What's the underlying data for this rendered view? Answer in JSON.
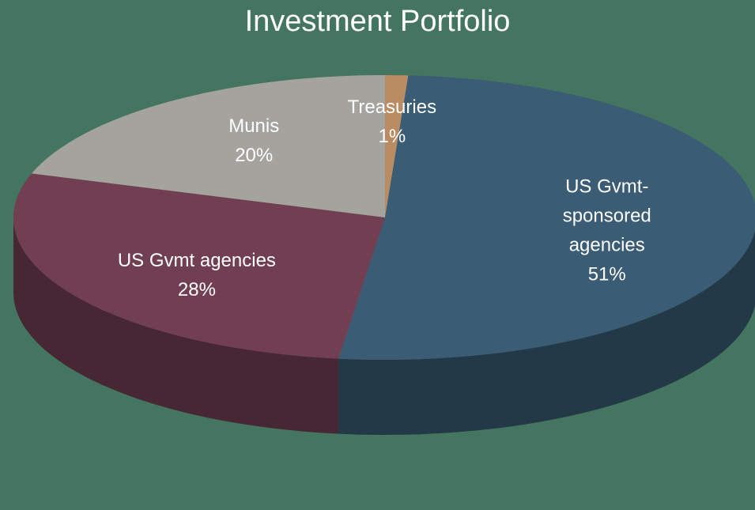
{
  "chart_data": {
    "type": "pie",
    "title": "Investment Portfolio",
    "categories": [
      "Treasuries",
      "US Gvmt-sponsored agencies",
      "US Gvmt agencies",
      "Munis"
    ],
    "values": [
      1,
      51,
      28,
      20
    ],
    "value_labels": [
      "1%",
      "51%",
      "28%",
      "20%"
    ],
    "colors": [
      "#b98c63",
      "#3a5c74",
      "#723f52",
      "#a5a39e"
    ]
  }
}
